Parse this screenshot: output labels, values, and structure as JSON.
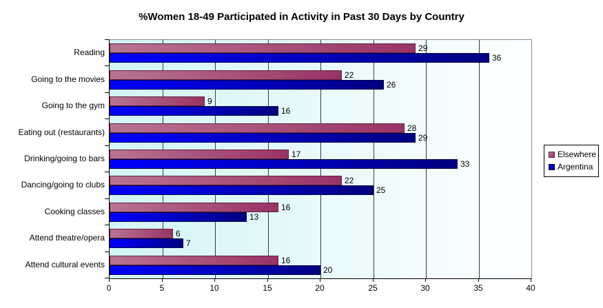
{
  "title": "%Women 18-49 Participated in Activity in Past 30 Days by Country",
  "chart_data": {
    "type": "bar",
    "orientation": "horizontal",
    "title": "%Women 18-49 Participated in Activity in Past 30 Days by Country",
    "categories": [
      "Reading",
      "Going to the movies",
      "Going to the gym",
      "Eating out (restaurants)",
      "Drinking/going to bars",
      "Dancing/going to clubs",
      "Cooking classes",
      "Attend theatre/opera",
      "Attend cultural events"
    ],
    "series": [
      {
        "name": "Elsewhere",
        "values": [
          29,
          22,
          9,
          28,
          17,
          22,
          16,
          6,
          16
        ],
        "color_start": "#b87493",
        "color_end": "#993366",
        "border_color": "#5f1f3d"
      },
      {
        "name": "Argentina",
        "values": [
          36,
          26,
          16,
          29,
          33,
          25,
          13,
          7,
          20
        ],
        "color_start": "#0000ff",
        "color_end": "#000080",
        "border_color": "#000046"
      }
    ],
    "xlabel": "",
    "ylabel": "",
    "xlim": [
      0,
      40
    ],
    "xticks": [
      0,
      5,
      10,
      15,
      20,
      25,
      30,
      35,
      40
    ],
    "grid": true,
    "value_labels": true,
    "legend_position": "right",
    "plot_bg_start": "#d2f4f8",
    "plot_bg_end": "#feffff",
    "gridline_color": "#3a3a3a",
    "value_label_color": "#000000"
  },
  "legend": {
    "items": [
      {
        "label": "Elsewhere"
      },
      {
        "label": "Argentina"
      }
    ]
  }
}
